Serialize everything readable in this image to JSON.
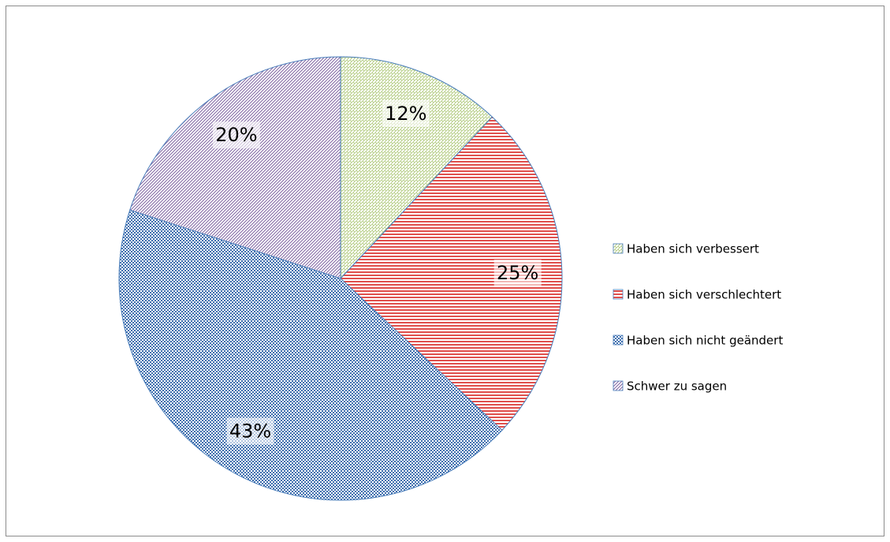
{
  "chart_data": {
    "type": "pie",
    "categories": [
      "Haben sich verbessert",
      "Haben sich verschlechtert",
      "Haben sich nicht geändert",
      "Schwer zu sagen"
    ],
    "values": [
      12,
      25,
      43,
      20
    ],
    "value_labels": [
      "12%",
      "25%",
      "43%",
      "20%"
    ],
    "colors": [
      "#9bbb59",
      "#e0504d",
      "#3f6fae",
      "#8064a2"
    ],
    "patterns": [
      "weave",
      "horizontal",
      "checker",
      "diagonal"
    ],
    "legend": "right"
  }
}
